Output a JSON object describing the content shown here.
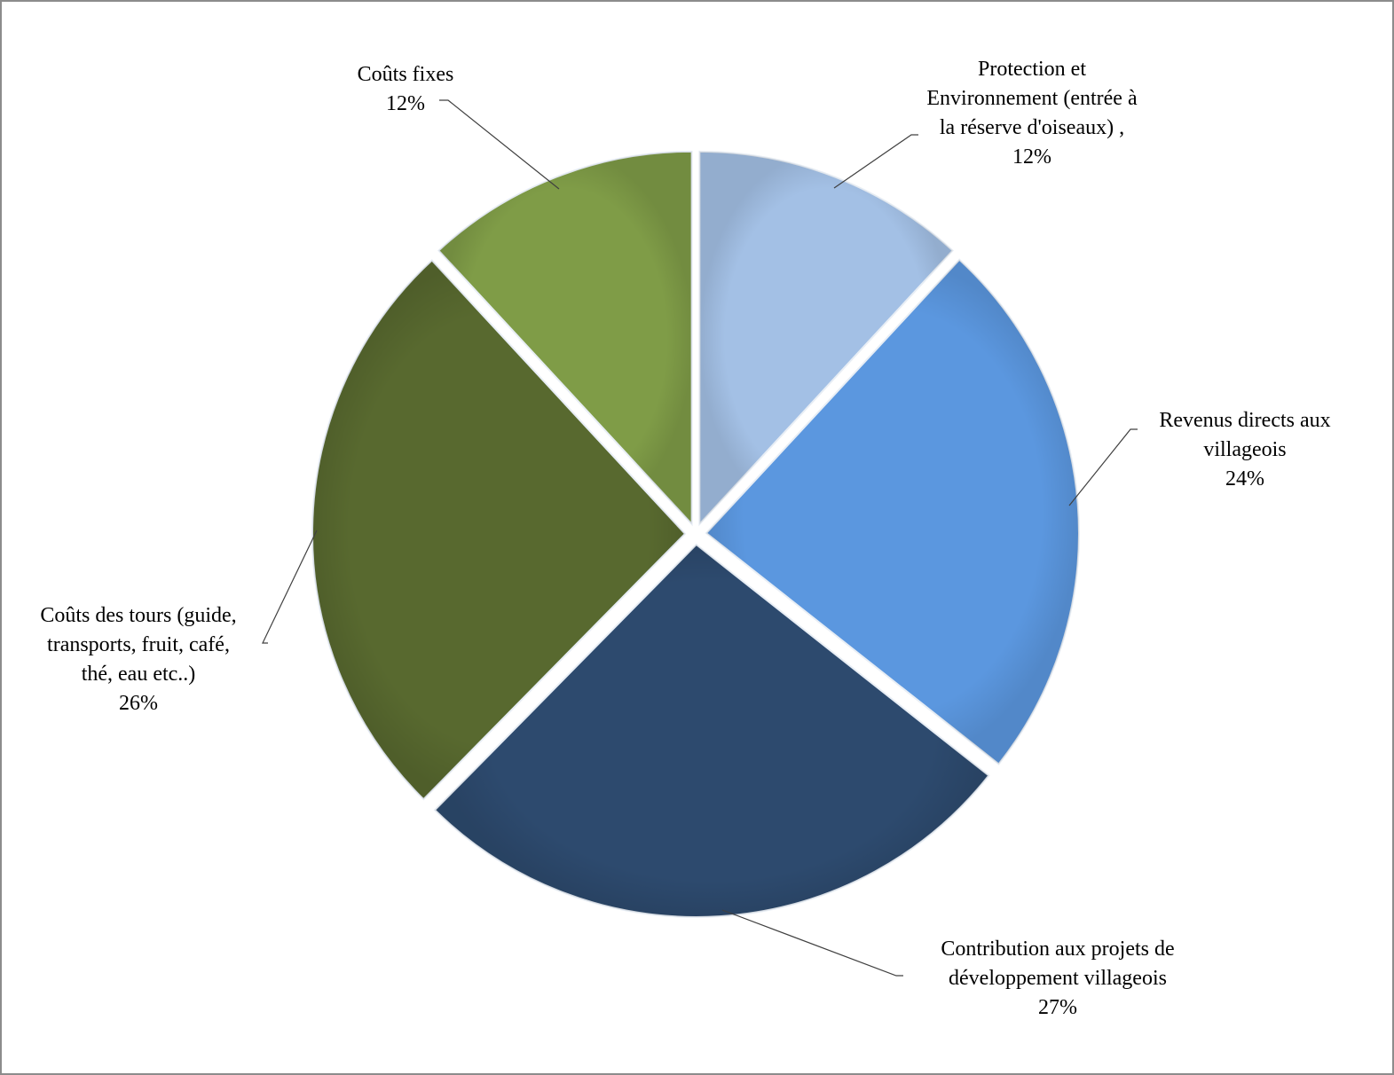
{
  "chart_data": {
    "type": "pie",
    "title": "",
    "start_angle_deg": 0,
    "direction": "clockwise",
    "slices": [
      {
        "label": "Protection et Environnement (entrée à la réserve d'oiseaux) ,",
        "label_lines": [
          "Protection et",
          "Environnement (entrée à",
          "la réserve d'oiseaux) ,"
        ],
        "value": 12,
        "value_label": "12%",
        "color": "#a3c0e5"
      },
      {
        "label": "Revenus directs aux villageois",
        "label_lines": [
          "Revenus directs aux",
          "villageois"
        ],
        "value": 24,
        "value_label": "24%",
        "color": "#5b97df"
      },
      {
        "label": "Contribution aux projets de développement villageois",
        "label_lines": [
          "Contribution aux projets de",
          "développement villageois"
        ],
        "value": 27,
        "value_label": "27%",
        "color": "#2d4a6e"
      },
      {
        "label": "Coûts des tours (guide, transports, fruit, café, thé, eau etc..)",
        "label_lines": [
          "Coûts des tours (guide,",
          "transports, fruit, café,",
          "thé, eau etc..)"
        ],
        "value": 26,
        "value_label": "26%",
        "color": "#58692f"
      },
      {
        "label": "Coûts fixes",
        "label_lines": [
          "Coûts fixes"
        ],
        "value": 12,
        "value_label": "12%",
        "color": "#7f9c47"
      }
    ],
    "legend": "none",
    "data_labels": "outside with leader lines"
  }
}
